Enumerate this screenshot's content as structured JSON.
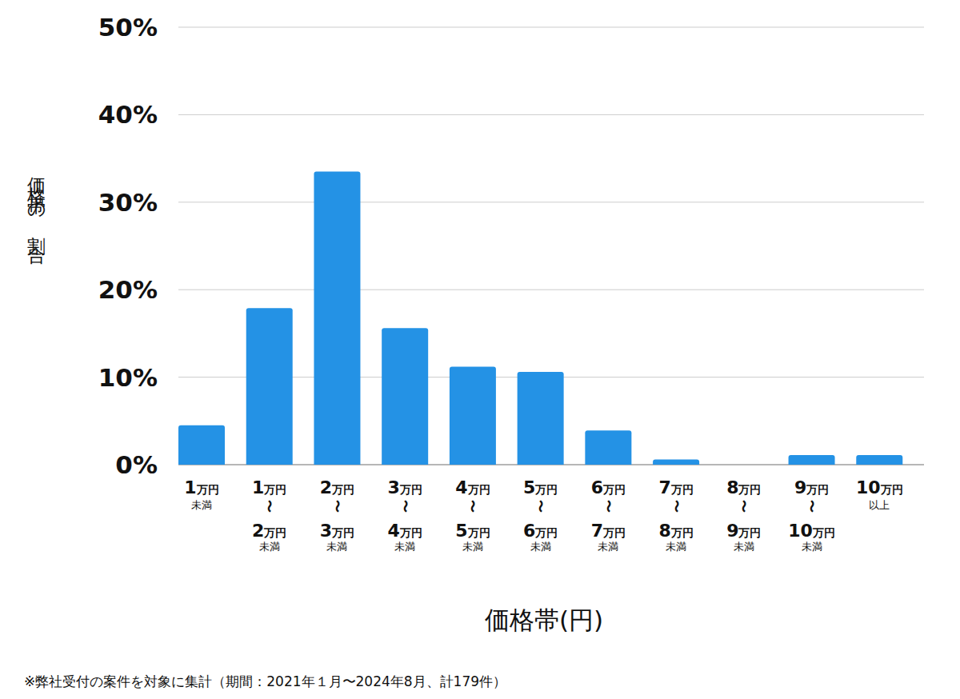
{
  "chart_data": {
    "type": "bar",
    "y_label": "価格帯の割合",
    "x_label": "価格帯(円)",
    "note": "※弊社受付の案件を対象に集計（期間：2021年１月〜2024年8月、計179件）",
    "categories": [
      [
        "1万円",
        "未満"
      ],
      [
        "1万円",
        "〜",
        "2万円",
        "未満"
      ],
      [
        "2万円",
        "〜",
        "3万円",
        "未満"
      ],
      [
        "3万円",
        "〜",
        "4万円",
        "未満"
      ],
      [
        "4万円",
        "〜",
        "5万円",
        "未満"
      ],
      [
        "5万円",
        "〜",
        "6万円",
        "未満"
      ],
      [
        "6万円",
        "〜",
        "7万円",
        "未満"
      ],
      [
        "7万円",
        "〜",
        "8万円",
        "未満"
      ],
      [
        "8万円",
        "〜",
        "9万円",
        "未満"
      ],
      [
        "9万円",
        "〜",
        "10万円",
        "未満"
      ],
      [
        "10万円",
        "以上"
      ]
    ],
    "values": [
      4.5,
      17.9,
      33.5,
      15.6,
      11.2,
      10.6,
      3.9,
      0.6,
      0,
      1.1,
      1.1
    ],
    "color": "#2492e5",
    "ylim": [
      0,
      50
    ],
    "yticks": [
      {
        "value": 0,
        "label": "0%"
      },
      {
        "value": 10,
        "label": "10%"
      },
      {
        "value": 20,
        "label": "20%"
      },
      {
        "value": 30,
        "label": "30%"
      },
      {
        "value": 40,
        "label": "40%"
      },
      {
        "value": 50,
        "label": "50%"
      }
    ],
    "grid": true
  }
}
